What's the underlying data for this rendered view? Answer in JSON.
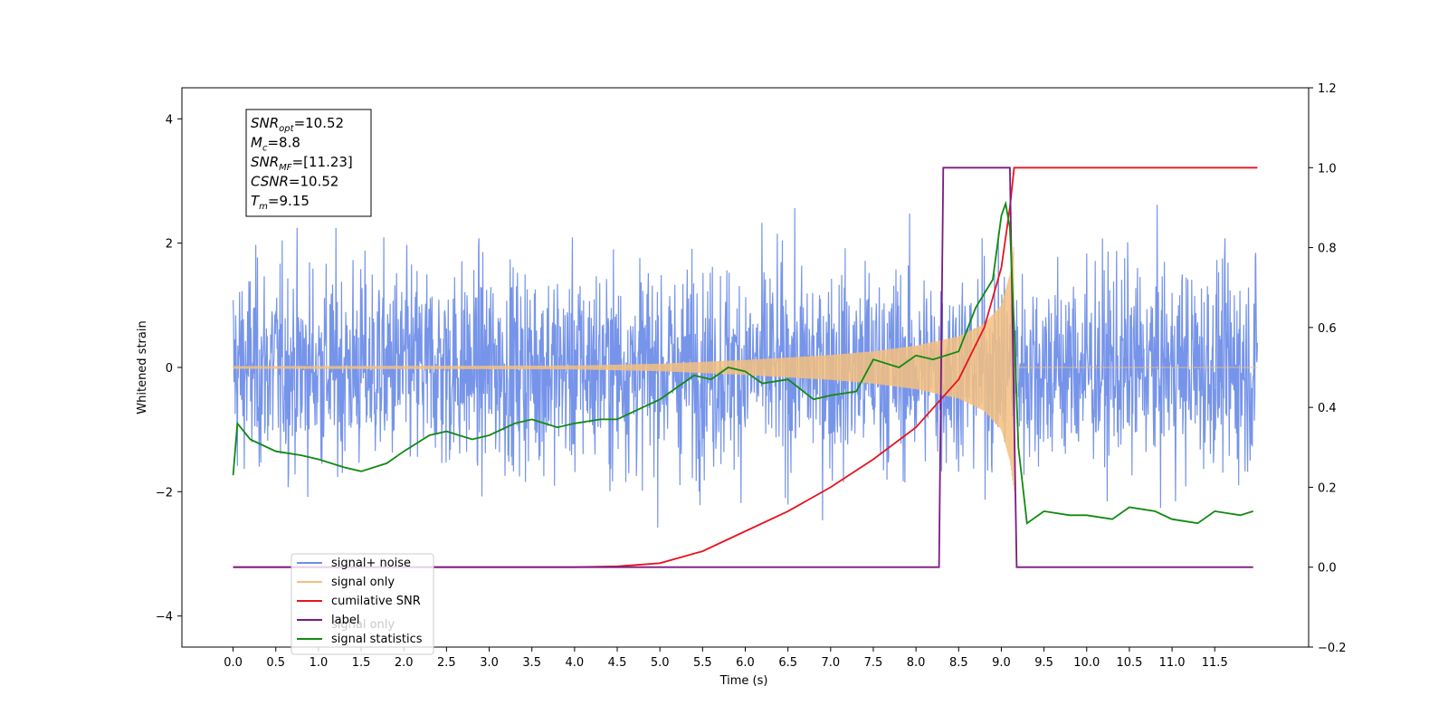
{
  "chart_data": {
    "type": "line",
    "xlabel": "Time (s)",
    "ylabel": "Whitened strain",
    "xlim": [
      -0.6,
      12.6
    ],
    "ylim": [
      -4.5,
      4.5
    ],
    "y2lim": [
      -0.2,
      1.2
    ],
    "x_ticks": [
      "0.0",
      "0.5",
      "1.0",
      "1.5",
      "2.0",
      "2.5",
      "3.0",
      "3.5",
      "4.0",
      "4.5",
      "5.0",
      "5.5",
      "6.0",
      "6.5",
      "7.0",
      "7.5",
      "8.0",
      "8.5",
      "9.0",
      "9.5",
      "10.0",
      "10.5",
      "11.0",
      "11.5"
    ],
    "y_ticks": [
      "4",
      "2",
      "0",
      "−2",
      "−4"
    ],
    "y2_ticks": [
      "1.2",
      "1.0",
      "0.8",
      "0.6",
      "0.4",
      "0.2",
      "0.0",
      "−0.2"
    ],
    "annotation": {
      "lines": [
        {
          "sym": "SNR",
          "sub": "opt",
          "rest": "=10.52"
        },
        {
          "sym": "M",
          "sub": "c",
          "rest": "=8.8"
        },
        {
          "sym": "SNR",
          "sub": "MF",
          "rest": "=[11.23]"
        },
        {
          "sym": "CSNR",
          "sub": "",
          "rest": "=10.52"
        },
        {
          "sym": "T",
          "sub": "m",
          "rest": "=9.15"
        }
      ]
    },
    "legend": {
      "location": "lower-left",
      "entries": [
        "signal+ noise",
        "signal only",
        "cumilative SNR",
        "label",
        "signal statistics"
      ],
      "ghost_text": "signal only"
    },
    "series": [
      {
        "name": "signal+ noise",
        "axis": "left",
        "color": "#6f8ee8",
        "description_range": [
          -4.1,
          4.1
        ],
        "x_range": [
          0.0,
          12.0
        ]
      },
      {
        "name": "signal only",
        "axis": "left",
        "color": "#f5bf7f",
        "envelope": {
          "x": [
            0,
            4,
            5,
            6,
            7,
            7.5,
            8,
            8.5,
            8.8,
            9.0,
            9.1,
            9.15
          ],
          "amp": [
            0.02,
            0.03,
            0.06,
            0.12,
            0.2,
            0.26,
            0.35,
            0.5,
            0.7,
            1.0,
            1.5,
            2.0
          ]
        }
      },
      {
        "name": "cumilative SNR",
        "axis": "right",
        "color": "#e8141e",
        "x": [
          0.0,
          4.0,
          4.5,
          5.0,
          5.5,
          6.0,
          6.5,
          7.0,
          7.5,
          8.0,
          8.5,
          8.8,
          9.0,
          9.1,
          9.15,
          12.0
        ],
        "y": [
          0.0,
          0.0,
          0.002,
          0.01,
          0.04,
          0.09,
          0.14,
          0.2,
          0.27,
          0.35,
          0.47,
          0.6,
          0.75,
          0.9,
          1.0,
          1.0
        ]
      },
      {
        "name": "label",
        "axis": "right",
        "color": "#7b1a82",
        "x": [
          0.0,
          8.27,
          8.32,
          9.1,
          9.18,
          11.95
        ],
        "y": [
          0.0,
          0.0,
          1.0,
          1.0,
          0.0,
          0.0
        ]
      },
      {
        "name": "signal statistics",
        "axis": "right",
        "color": "#118a11",
        "x": [
          0.0,
          0.05,
          0.2,
          0.5,
          0.8,
          1.0,
          1.3,
          1.5,
          1.8,
          2.0,
          2.3,
          2.5,
          2.8,
          3.0,
          3.3,
          3.5,
          3.8,
          4.0,
          4.3,
          4.5,
          4.8,
          5.0,
          5.2,
          5.4,
          5.6,
          5.8,
          6.0,
          6.2,
          6.5,
          6.8,
          7.0,
          7.3,
          7.5,
          7.8,
          8.0,
          8.2,
          8.5,
          8.7,
          8.9,
          9.0,
          9.05,
          9.1,
          9.15,
          9.2,
          9.3,
          9.5,
          9.8,
          10.0,
          10.3,
          10.5,
          10.8,
          11.0,
          11.3,
          11.5,
          11.8,
          11.95
        ],
        "y": [
          0.23,
          0.36,
          0.32,
          0.29,
          0.28,
          0.27,
          0.25,
          0.24,
          0.26,
          0.29,
          0.33,
          0.34,
          0.32,
          0.33,
          0.36,
          0.37,
          0.35,
          0.36,
          0.37,
          0.37,
          0.4,
          0.42,
          0.45,
          0.48,
          0.47,
          0.5,
          0.49,
          0.46,
          0.47,
          0.42,
          0.43,
          0.44,
          0.52,
          0.5,
          0.53,
          0.52,
          0.54,
          0.65,
          0.72,
          0.88,
          0.91,
          0.85,
          0.6,
          0.3,
          0.11,
          0.14,
          0.13,
          0.13,
          0.12,
          0.15,
          0.14,
          0.12,
          0.11,
          0.14,
          0.13,
          0.14
        ]
      }
    ]
  }
}
